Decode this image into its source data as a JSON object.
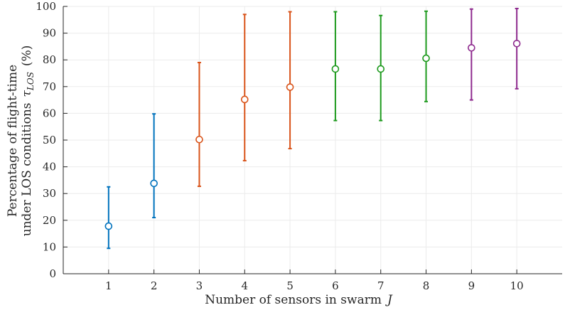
{
  "chart_data": {
    "type": "scatter",
    "x_label": "Number of sensors in swarm",
    "x_label_symbol": "J",
    "y_label_line1": "Percentage of flight-time",
    "y_label_line2_text": "under LOS conditions",
    "y_label_symbol": "τ",
    "y_label_subscript": "LOS",
    "y_label_unit": "(%)",
    "xlim": [
      0,
      11
    ],
    "ylim": [
      0,
      100
    ],
    "x_ticks": [
      1,
      2,
      3,
      4,
      5,
      6,
      7,
      8,
      9,
      10
    ],
    "y_ticks": [
      0,
      10,
      20,
      30,
      40,
      50,
      60,
      70,
      80,
      90,
      100
    ],
    "grid": true,
    "marker": "open-circle",
    "points": [
      {
        "x": 1,
        "y": 17.8,
        "low": 9.5,
        "high": 32.5,
        "color": "#0072BD"
      },
      {
        "x": 2,
        "y": 33.8,
        "low": 21.0,
        "high": 59.8,
        "color": "#0072BD"
      },
      {
        "x": 3,
        "y": 50.2,
        "low": 32.7,
        "high": 79.0,
        "color": "#D95319"
      },
      {
        "x": 4,
        "y": 65.2,
        "low": 42.3,
        "high": 97.0,
        "color": "#D95319"
      },
      {
        "x": 5,
        "y": 69.8,
        "low": 46.8,
        "high": 98.0,
        "color": "#D95319"
      },
      {
        "x": 6,
        "y": 76.6,
        "low": 57.3,
        "high": 98.0,
        "color": "#1E9A1E"
      },
      {
        "x": 7,
        "y": 76.6,
        "low": 57.3,
        "high": 96.6,
        "color": "#1E9A1E"
      },
      {
        "x": 8,
        "y": 80.6,
        "low": 64.4,
        "high": 98.2,
        "color": "#1E9A1E"
      },
      {
        "x": 9,
        "y": 84.5,
        "low": 65.0,
        "high": 99.0,
        "color": "#8E2A8E"
      },
      {
        "x": 10,
        "y": 86.1,
        "low": 69.2,
        "high": 99.2,
        "color": "#8E2A8E"
      }
    ]
  }
}
